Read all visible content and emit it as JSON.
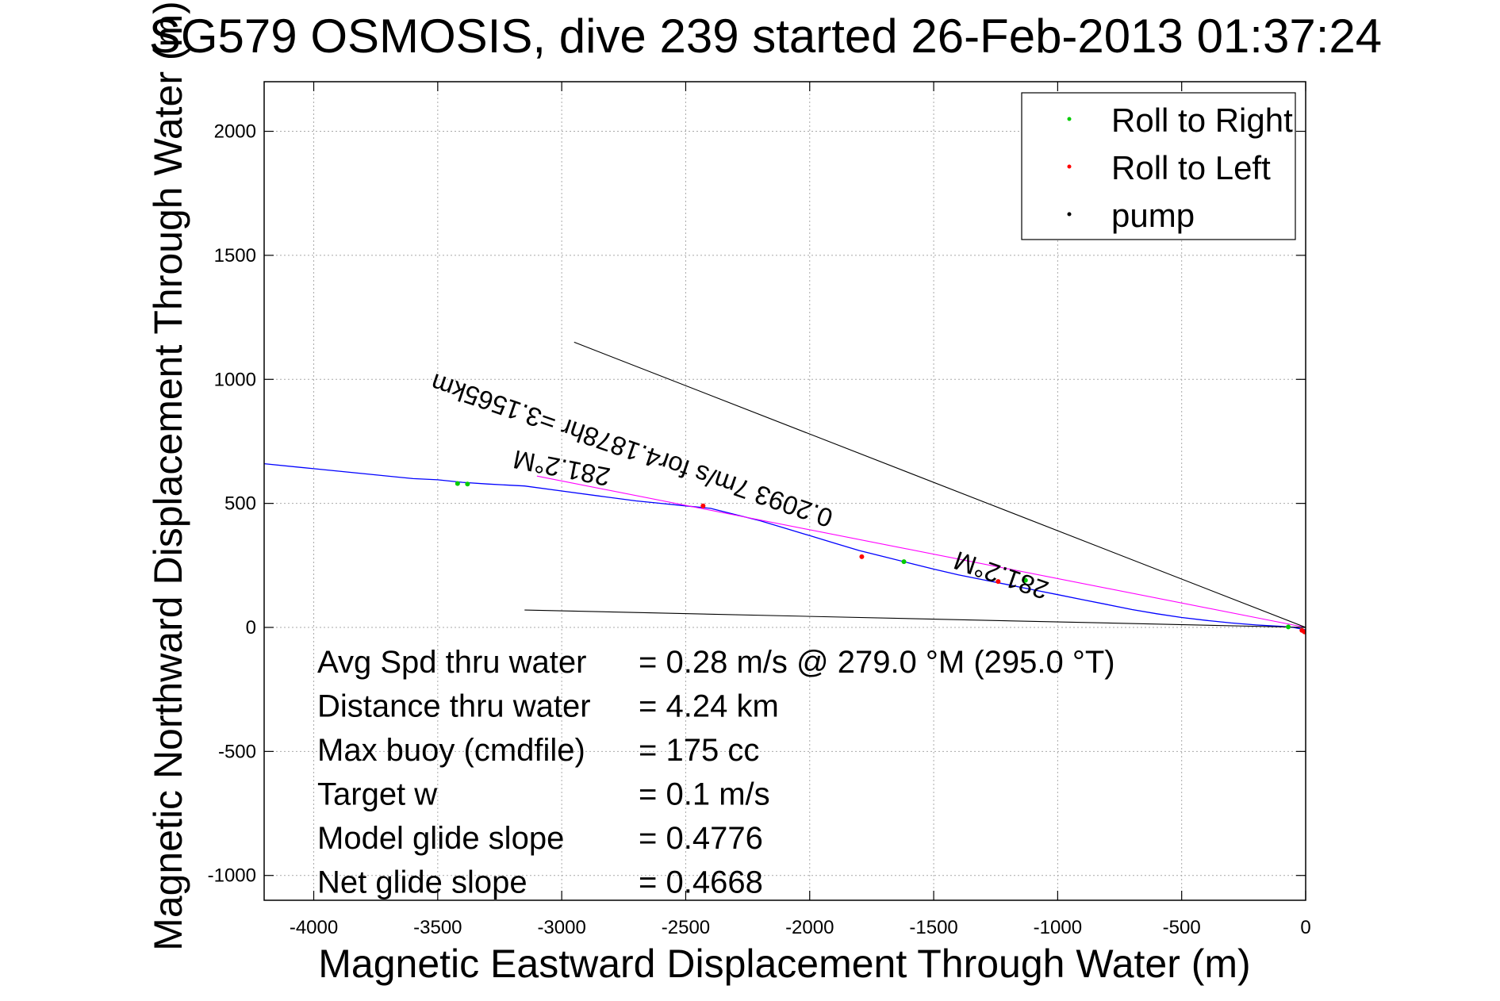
{
  "chart_data": {
    "type": "line",
    "title": "SG579 OSMOSIS, dive 239 started 26-Feb-2013 01:37:24",
    "xlabel": "Magnetic Eastward Displacement Through Water (m)",
    "ylabel": "Magnetic Northward Displacement Through Water (m)",
    "xlim": [
      -4200,
      0
    ],
    "ylim": [
      -1100,
      2200
    ],
    "xticks": [
      -4000,
      -3500,
      -3000,
      -2500,
      -2000,
      -1500,
      -1000,
      -500,
      0
    ],
    "yticks": [
      -1000,
      -500,
      0,
      500,
      1000,
      1500,
      2000
    ],
    "grid": true,
    "legend_position": "top-right",
    "legend": [
      {
        "label": "Roll to Right",
        "color": "#00cc00"
      },
      {
        "label": "Roll to Left",
        "color": "#ff0000"
      },
      {
        "label": "pump",
        "color": "#000000"
      }
    ],
    "series": [
      {
        "name": "",
        "color": "#0000ff",
        "x": [
          -4200,
          -4000,
          -3800,
          -3600,
          -3500,
          -3400,
          -3300,
          -3150,
          -3000,
          -2850,
          -2700,
          -2600,
          -2500,
          -2400,
          -2300,
          -2200,
          -2100,
          -2000,
          -1900,
          -1800,
          -1700,
          -1600,
          -1500,
          -1400,
          -1300,
          -1200,
          -1100,
          -1000,
          -900,
          -800,
          -700,
          -600,
          -500,
          -400,
          -300,
          -200,
          -100,
          -50,
          0
        ],
        "y": [
          660,
          640,
          620,
          600,
          595,
          585,
          578,
          570,
          550,
          530,
          510,
          500,
          490,
          480,
          455,
          430,
          400,
          370,
          340,
          310,
          285,
          260,
          235,
          212,
          192,
          172,
          152,
          132,
          112,
          92,
          72,
          55,
          40,
          28,
          18,
          10,
          4,
          0,
          -10
        ]
      },
      {
        "name": "",
        "color": "#ff00ff",
        "x": [
          -3100,
          0
        ],
        "y": [
          610,
          0
        ]
      },
      {
        "name": "",
        "color": "#000000",
        "x": [
          -2950,
          0
        ],
        "y": [
          1150,
          0
        ]
      },
      {
        "name": "",
        "color": "#000000",
        "x": [
          -3150,
          0
        ],
        "y": [
          70,
          0
        ]
      }
    ],
    "markers": [
      {
        "type": "Roll to Right",
        "x": [
          -3420,
          -3380,
          -1620,
          -1130,
          -70
        ],
        "y": [
          580,
          578,
          265,
          190,
          2
        ],
        "color": "#00cc00"
      },
      {
        "type": "Roll to Left",
        "x": [
          -2430,
          -1790,
          -1240,
          -15,
          -5
        ],
        "y": [
          490,
          285,
          185,
          -12,
          -18
        ],
        "color": "#ff0000"
      }
    ],
    "annotations": [
      {
        "text": "281.2°M",
        "x": -2800,
        "y": 640,
        "rotation": 191
      },
      {
        "text": "0.2093 7m/s for4.1878hr =3.1565km",
        "x": -1900,
        "y": 470,
        "rotation": 199
      },
      {
        "text": "281.2°M",
        "x": -1030,
        "y": 180,
        "rotation": 199
      }
    ]
  },
  "stats": [
    {
      "label": "Avg Spd thru water",
      "value": "=  0.28 m/s @ 279.0 °M (295.0 °T)"
    },
    {
      "label": "Distance thru water",
      "value": "=  4.24 km"
    },
    {
      "label": "Max buoy (cmdfile)",
      "value": "= 175 cc"
    },
    {
      "label": "Target w",
      "value": "= 0.1 m/s"
    },
    {
      "label": "Model glide slope",
      "value": "= 0.4776"
    },
    {
      "label": "Net glide slope",
      "value": "= 0.4668"
    }
  ]
}
